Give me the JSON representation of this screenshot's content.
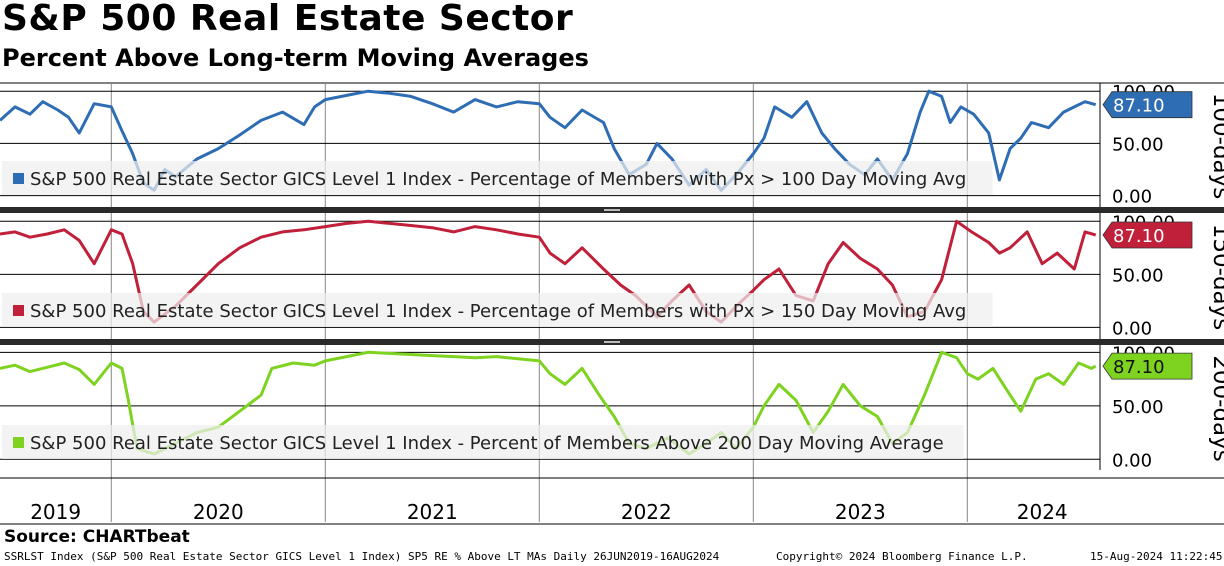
{
  "title": "S&P 500 Real Estate Sector",
  "subtitle": "Percent Above Long-term Moving Averages",
  "source": "Source: CHARTbeat",
  "footer": {
    "left": "SSRLST Index (S&P 500 Real Estate Sector GICS Level 1 Index) SP5 RE % Above LT MAs  Daily 26JUN2019-16AUG2024",
    "center": "Copyright© 2024 Bloomberg Finance L.P.",
    "right": "15-Aug-2024 11:22:45"
  },
  "x_axis": {
    "start_year": 2019.48,
    "end_year": 2024.62,
    "year_labels": [
      "2019",
      "2020",
      "2021",
      "2022",
      "2023",
      "2024"
    ],
    "year_label_positions": [
      2019.74,
      2020.5,
      2021.5,
      2022.5,
      2023.5,
      2024.35
    ]
  },
  "chart_data": [
    {
      "type": "line",
      "panel_label": "100-days",
      "legend": "S&P 500 Real Estate Sector GICS Level 1 Index - Percentage of Members with Px > 100 Day Moving Avg",
      "color": "#2E6DB4",
      "light_color": "#8FB3DB",
      "last_value_label": "87.10",
      "last_value": 87.1,
      "y_ticks": [
        "0.00",
        "50.00",
        "100.00"
      ],
      "ylim": [
        -10,
        105
      ],
      "series": {
        "x": [
          2019.48,
          2019.55,
          2019.62,
          2019.68,
          2019.75,
          2019.8,
          2019.85,
          2019.92,
          2020.0,
          2020.05,
          2020.1,
          2020.15,
          2020.2,
          2020.25,
          2020.3,
          2020.4,
          2020.5,
          2020.6,
          2020.7,
          2020.8,
          2020.9,
          2020.95,
          2021.0,
          2021.1,
          2021.2,
          2021.3,
          2021.4,
          2021.5,
          2021.6,
          2021.7,
          2021.8,
          2021.9,
          2022.0,
          2022.05,
          2022.12,
          2022.2,
          2022.3,
          2022.35,
          2022.42,
          2022.5,
          2022.55,
          2022.62,
          2022.7,
          2022.78,
          2022.85,
          2022.92,
          2023.0,
          2023.05,
          2023.1,
          2023.18,
          2023.25,
          2023.32,
          2023.38,
          2023.45,
          2023.52,
          2023.58,
          2023.65,
          2023.72,
          2023.78,
          2023.82,
          2023.88,
          2023.92,
          2023.97,
          2024.03,
          2024.1,
          2024.15,
          2024.2,
          2024.25,
          2024.3,
          2024.38,
          2024.45,
          2024.5,
          2024.55,
          2024.6
        ],
        "y": [
          72,
          85,
          78,
          90,
          82,
          75,
          60,
          88,
          85,
          62,
          40,
          12,
          5,
          25,
          18,
          35,
          45,
          58,
          72,
          80,
          68,
          85,
          92,
          96,
          100,
          98,
          95,
          88,
          80,
          92,
          85,
          90,
          88,
          75,
          65,
          82,
          70,
          45,
          20,
          30,
          50,
          35,
          10,
          25,
          5,
          20,
          40,
          55,
          85,
          75,
          90,
          60,
          45,
          30,
          20,
          35,
          15,
          40,
          80,
          100,
          95,
          70,
          85,
          78,
          60,
          15,
          45,
          55,
          70,
          65,
          80,
          85,
          90,
          87.1
        ]
      }
    },
    {
      "type": "line",
      "panel_label": "150-days",
      "legend": "S&P 500 Real Estate Sector GICS Level 1 Index - Percentage of Members with Px > 150 Day Moving Avg",
      "color": "#C0203A",
      "light_color": "#E290A0",
      "last_value_label": "87.10",
      "last_value": 87.1,
      "y_ticks": [
        "0.00",
        "50.00",
        "100.00"
      ],
      "ylim": [
        -10,
        105
      ],
      "series": {
        "x": [
          2019.48,
          2019.55,
          2019.62,
          2019.7,
          2019.78,
          2019.85,
          2019.92,
          2020.0,
          2020.05,
          2020.1,
          2020.15,
          2020.2,
          2020.3,
          2020.4,
          2020.5,
          2020.6,
          2020.7,
          2020.8,
          2020.9,
          2021.0,
          2021.1,
          2021.2,
          2021.3,
          2021.4,
          2021.5,
          2021.6,
          2021.7,
          2021.8,
          2021.9,
          2022.0,
          2022.05,
          2022.12,
          2022.2,
          2022.3,
          2022.38,
          2022.45,
          2022.55,
          2022.62,
          2022.7,
          2022.78,
          2022.85,
          2022.92,
          2023.0,
          2023.05,
          2023.12,
          2023.2,
          2023.28,
          2023.35,
          2023.42,
          2023.5,
          2023.58,
          2023.65,
          2023.72,
          2023.8,
          2023.88,
          2023.95,
          2024.02,
          2024.1,
          2024.15,
          2024.2,
          2024.28,
          2024.35,
          2024.42,
          2024.5,
          2024.55,
          2024.6
        ],
        "y": [
          88,
          90,
          85,
          88,
          92,
          82,
          60,
          92,
          88,
          60,
          15,
          5,
          20,
          40,
          60,
          75,
          85,
          90,
          92,
          95,
          98,
          100,
          98,
          96,
          94,
          90,
          95,
          92,
          88,
          85,
          70,
          60,
          75,
          55,
          40,
          30,
          10,
          25,
          40,
          15,
          5,
          20,
          35,
          45,
          55,
          30,
          25,
          60,
          80,
          65,
          55,
          40,
          10,
          15,
          45,
          100,
          90,
          80,
          70,
          75,
          90,
          60,
          70,
          55,
          90,
          87.1
        ]
      }
    },
    {
      "type": "line",
      "panel_label": "200-days",
      "legend": "S&P 500 Real Estate Sector GICS Level 1 Index - Percent of Members Above 200 Day Moving Average",
      "color": "#7ED321",
      "light_color": "#C5EC96",
      "last_value_label": "87.10",
      "last_value": 87.1,
      "y_ticks": [
        "0.00",
        "50.00",
        "100.00"
      ],
      "ylim": [
        -10,
        105
      ],
      "series": {
        "x": [
          2019.48,
          2019.55,
          2019.62,
          2019.7,
          2019.78,
          2019.85,
          2019.92,
          2020.0,
          2020.05,
          2020.08,
          2020.12,
          2020.2,
          2020.3,
          2020.4,
          2020.5,
          2020.6,
          2020.7,
          2020.75,
          2020.85,
          2020.95,
          2021.0,
          2021.1,
          2021.2,
          2021.3,
          2021.4,
          2021.5,
          2021.6,
          2021.7,
          2021.8,
          2021.9,
          2022.0,
          2022.05,
          2022.12,
          2022.2,
          2022.28,
          2022.35,
          2022.42,
          2022.5,
          2022.6,
          2022.7,
          2022.78,
          2022.85,
          2022.92,
          2023.0,
          2023.05,
          2023.12,
          2023.2,
          2023.28,
          2023.35,
          2023.42,
          2023.5,
          2023.58,
          2023.65,
          2023.72,
          2023.8,
          2023.88,
          2023.95,
          2024.0,
          2024.05,
          2024.12,
          2024.2,
          2024.25,
          2024.32,
          2024.38,
          2024.45,
          2024.52,
          2024.58,
          2024.6
        ],
        "y": [
          85,
          88,
          82,
          86,
          90,
          84,
          70,
          90,
          85,
          55,
          10,
          5,
          15,
          25,
          30,
          45,
          60,
          85,
          90,
          88,
          92,
          96,
          100,
          99,
          98,
          97,
          96,
          95,
          96,
          94,
          92,
          80,
          70,
          85,
          60,
          40,
          15,
          10,
          20,
          5,
          15,
          25,
          10,
          30,
          50,
          70,
          55,
          25,
          45,
          70,
          50,
          40,
          15,
          25,
          60,
          100,
          95,
          80,
          75,
          85,
          60,
          45,
          75,
          80,
          70,
          90,
          85,
          87.1
        ]
      }
    }
  ]
}
